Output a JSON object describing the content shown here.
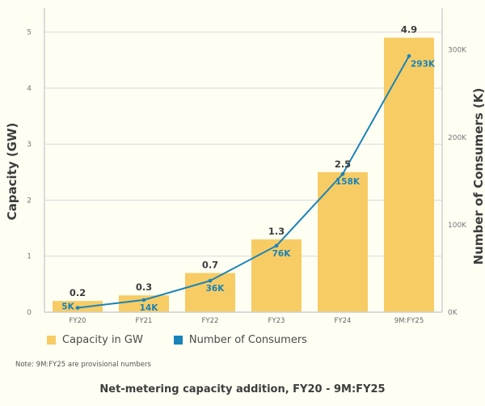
{
  "chart_data": {
    "type": "bar",
    "title": "Net-metering capacity addition, FY20 - 9M:FY25",
    "categories": [
      "FY20",
      "FY21",
      "FY22",
      "FY23",
      "FY24",
      "9M:FY25"
    ],
    "series": [
      {
        "name": "Capacity in GW",
        "type": "bar",
        "axis": "left",
        "color": "#f7cc64",
        "values": [
          0.2,
          0.3,
          0.7,
          1.3,
          2.5,
          4.9
        ],
        "labels": [
          "0.2",
          "0.3",
          "0.7",
          "1.3",
          "2.5",
          "4.9"
        ]
      },
      {
        "name": "Number of Consumers",
        "type": "line",
        "axis": "right",
        "color": "#1a83b8",
        "values": [
          5,
          14,
          36,
          76,
          158,
          293
        ],
        "labels": [
          "5K",
          "14K",
          "36K",
          "76K",
          "158K",
          "293K"
        ]
      }
    ],
    "ylabel": "Capacity (GW)",
    "ylim": [
      0,
      5.4
    ],
    "yticks": [
      "0",
      "1",
      "2",
      "3",
      "4",
      "5"
    ],
    "y2label": "Number of Consumers (K)",
    "y2lim": [
      0,
      346
    ],
    "y2ticks": [
      "0K",
      "100K",
      "200K",
      "300K"
    ],
    "grid": true,
    "legend_position": "bottom-left"
  },
  "legend": {
    "items": [
      {
        "label": "Capacity in GW",
        "color": "#f7cc64"
      },
      {
        "label": "Number of Consumers",
        "color": "#1a83b8"
      }
    ]
  },
  "note": "Note: 9M:FY25 are provisional numbers",
  "caption": "Net-metering capacity addition, FY20 - 9M:FY25"
}
